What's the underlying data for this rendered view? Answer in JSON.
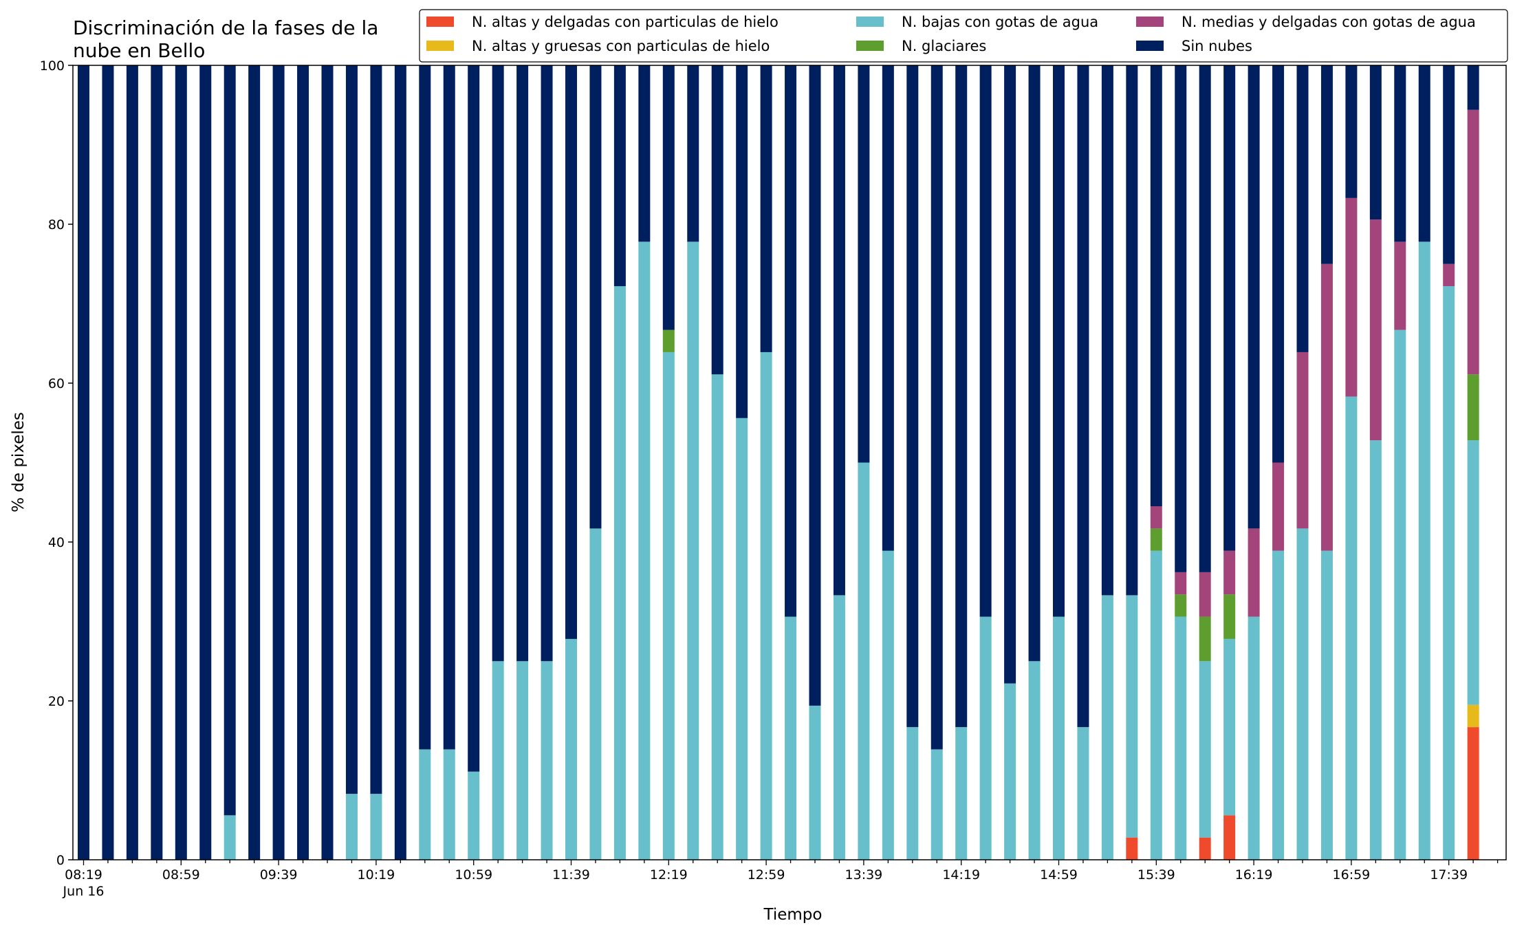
{
  "chart_data": {
    "type": "bar",
    "stacked": true,
    "title": "Discriminación de la fases de la nube en Bello",
    "title_lines": [
      "Discriminación de la fases de la",
      "nube en Bello"
    ],
    "xlabel": "Tiempo",
    "ylabel": "% de pixeles",
    "ylim": [
      0,
      100
    ],
    "yticks": [
      0,
      20,
      40,
      60,
      80,
      100
    ],
    "grid": false,
    "legend_position": "top-right",
    "x_labels": [
      {
        "index": 0,
        "text": "08:19",
        "subtext": "Jun 16"
      },
      {
        "index": 4,
        "text": "08:59"
      },
      {
        "index": 8,
        "text": "09:39"
      },
      {
        "index": 12,
        "text": "10:19"
      },
      {
        "index": 16,
        "text": "10:59"
      },
      {
        "index": 20,
        "text": "11:39"
      },
      {
        "index": 24,
        "text": "12:19"
      },
      {
        "index": 28,
        "text": "12:59"
      },
      {
        "index": 32,
        "text": "13:39"
      },
      {
        "index": 36,
        "text": "14:19"
      },
      {
        "index": 40,
        "text": "14:59"
      },
      {
        "index": 44,
        "text": "15:39"
      },
      {
        "index": 48,
        "text": "16:19"
      },
      {
        "index": 52,
        "text": "16:59"
      },
      {
        "index": 56,
        "text": "17:39"
      }
    ],
    "series": [
      {
        "name": "N. altas y delgadas con particulas de hielo",
        "color": "#ef4a2b",
        "values": [
          0,
          0,
          0,
          0,
          0,
          0,
          0,
          0,
          0,
          0,
          0,
          0,
          0,
          0,
          0,
          0,
          0,
          0,
          0,
          0,
          0,
          0,
          0,
          0,
          0,
          0,
          0,
          0,
          0,
          0,
          0,
          0,
          0,
          0,
          0,
          0,
          0,
          0,
          0,
          0,
          0,
          0,
          0,
          2.8,
          0,
          0,
          2.8,
          5.6,
          0,
          0,
          0,
          0,
          0,
          0,
          0,
          0,
          0,
          16.7
        ]
      },
      {
        "name": "N. altas y gruesas con particulas de hielo",
        "color": "#e8b91a",
        "values": [
          0,
          0,
          0,
          0,
          0,
          0,
          0,
          0,
          0,
          0,
          0,
          0,
          0,
          0,
          0,
          0,
          0,
          0,
          0,
          0,
          0,
          0,
          0,
          0,
          0,
          0,
          0,
          0,
          0,
          0,
          0,
          0,
          0,
          0,
          0,
          0,
          0,
          0,
          0,
          0,
          0,
          0,
          0,
          0,
          0,
          0,
          0,
          0,
          0,
          0,
          0,
          0,
          0,
          0,
          0,
          0,
          0,
          2.8
        ]
      },
      {
        "name": "N. bajas con gotas de agua",
        "color": "#66bfcb",
        "values": [
          0,
          0,
          0,
          0,
          0,
          0,
          5.6,
          0,
          0,
          0,
          0,
          8.3,
          8.3,
          0,
          13.9,
          13.9,
          11.1,
          25,
          25,
          25,
          27.8,
          41.7,
          72.2,
          77.8,
          63.9,
          77.8,
          61.1,
          55.6,
          63.9,
          30.6,
          19.4,
          33.3,
          50,
          38.9,
          16.7,
          13.9,
          16.7,
          30.6,
          22.2,
          25,
          30.6,
          16.7,
          33.3,
          30.5,
          38.9,
          30.6,
          22.2,
          22.2,
          30.6,
          38.9,
          41.7,
          38.9,
          58.3,
          52.8,
          66.7,
          77.8,
          72.2,
          33.3
        ]
      },
      {
        "name": "N. glaciares",
        "color": "#5e9e2e",
        "values": [
          0,
          0,
          0,
          0,
          0,
          0,
          0,
          0,
          0,
          0,
          0,
          0,
          0,
          0,
          0,
          0,
          0,
          0,
          0,
          0,
          0,
          0,
          0,
          0,
          2.8,
          0,
          0,
          0,
          0,
          0,
          0,
          0,
          0,
          0,
          0,
          0,
          0,
          0,
          0,
          0,
          0,
          0,
          0,
          0,
          2.8,
          2.8,
          5.6,
          5.6,
          0,
          0,
          0,
          0,
          0,
          0,
          0,
          0,
          0,
          8.3
        ]
      },
      {
        "name": "N. medias y delgadas con gotas de agua",
        "color": "#a3457a",
        "values": [
          0,
          0,
          0,
          0,
          0,
          0,
          0,
          0,
          0,
          0,
          0,
          0,
          0,
          0,
          0,
          0,
          0,
          0,
          0,
          0,
          0,
          0,
          0,
          0,
          0,
          0,
          0,
          0,
          0,
          0,
          0,
          0,
          0,
          0,
          0,
          0,
          0,
          0,
          0,
          0,
          0,
          0,
          0,
          0,
          2.8,
          2.8,
          5.6,
          5.5,
          11.1,
          11.1,
          22.2,
          36.1,
          25,
          27.8,
          11.1,
          0,
          2.8,
          33.3
        ]
      },
      {
        "name": "Sin nubes",
        "color": "#001f5f",
        "values": [
          100,
          100,
          100,
          100,
          100,
          100,
          94.4,
          100,
          100,
          100,
          100,
          91.7,
          91.7,
          100,
          86.1,
          86.1,
          88.9,
          75,
          75,
          75,
          72.2,
          58.3,
          27.8,
          22.2,
          33.3,
          22.2,
          38.9,
          44.4,
          36.1,
          69.4,
          80.6,
          66.7,
          50,
          61.1,
          83.3,
          86.1,
          83.3,
          69.4,
          77.8,
          75,
          69.4,
          83.3,
          66.7,
          66.7,
          55.5,
          63.8,
          63.8,
          61.1,
          58.3,
          50,
          36.1,
          25,
          16.7,
          19.4,
          22.2,
          22.2,
          25,
          5.6
        ]
      }
    ]
  }
}
